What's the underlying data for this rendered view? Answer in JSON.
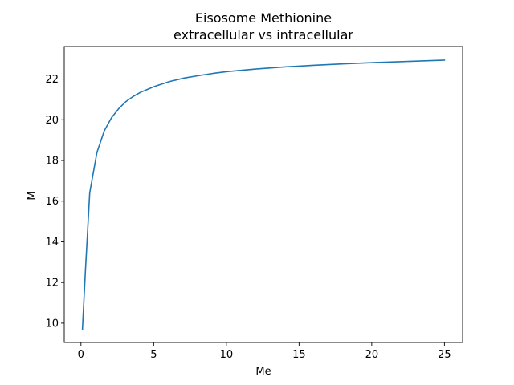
{
  "chart_data": {
    "type": "line",
    "title": "Eisosome Methionine",
    "subtitle": "extracellular vs intracellular",
    "xlabel": "Me",
    "ylabel": "M",
    "xlim": [
      -1.15,
      26.25
    ],
    "ylim": [
      9.05,
      23.6
    ],
    "xticks": [
      0,
      5,
      10,
      15,
      20,
      25
    ],
    "yticks": [
      10,
      12,
      14,
      16,
      18,
      20,
      22
    ],
    "grid": false,
    "series": [
      {
        "color": "#1f77b4",
        "x": [
          0.1,
          0.3,
          0.6,
          1.1,
          1.6,
          2.1,
          2.6,
          3.1,
          3.6,
          4.1,
          4.6,
          5.1,
          6.1,
          7.1,
          8.1,
          9.1,
          10.1,
          12.1,
          14.1,
          16.1,
          18.1,
          20.1,
          22.1,
          25.0
        ],
        "y": [
          9.7,
          12.5,
          16.4,
          18.4,
          19.45,
          20.1,
          20.55,
          20.9,
          21.15,
          21.35,
          21.5,
          21.65,
          21.88,
          22.05,
          22.17,
          22.28,
          22.37,
          22.5,
          22.6,
          22.68,
          22.75,
          22.81,
          22.86,
          22.93
        ]
      }
    ]
  }
}
